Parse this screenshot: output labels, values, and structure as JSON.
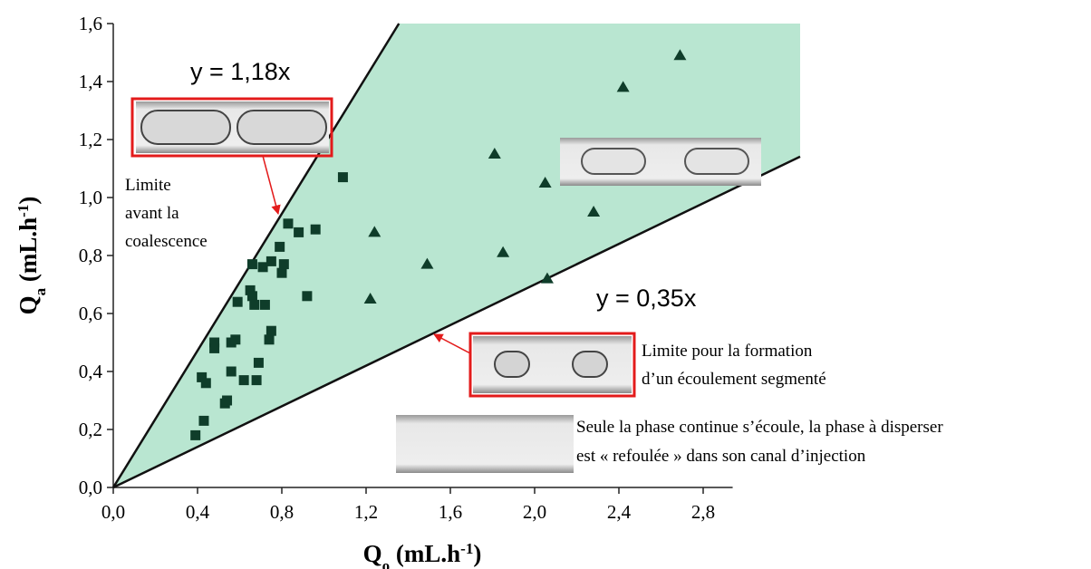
{
  "chart_data": {
    "type": "scatter",
    "xlabel": [
      "Q",
      "o",
      " (mL.h",
      "-1",
      ")"
    ],
    "ylabel": [
      "Q",
      "a",
      " (mL.h",
      "-1",
      ")"
    ],
    "xlim": [
      0,
      2.94
    ],
    "ylim": [
      0,
      1.6
    ],
    "xticks": [
      {
        "value": 0,
        "label": "0,0"
      },
      {
        "value": 0.4,
        "label": "0,4"
      },
      {
        "value": 0.8,
        "label": "0,8"
      },
      {
        "value": 1.2,
        "label": "1,2"
      },
      {
        "value": 1.6,
        "label": "1,6"
      },
      {
        "value": 2.0,
        "label": "2,0"
      },
      {
        "value": 2.4,
        "label": "2,4"
      },
      {
        "value": 2.8,
        "label": "2,8"
      }
    ],
    "yticks": [
      {
        "value": 0,
        "label": "0,0"
      },
      {
        "value": 0.2,
        "label": "0,2"
      },
      {
        "value": 0.4,
        "label": "0,4"
      },
      {
        "value": 0.6,
        "label": "0,6"
      },
      {
        "value": 0.8,
        "label": "0,8"
      },
      {
        "value": 1.0,
        "label": "1,0"
      },
      {
        "value": 1.2,
        "label": "1,2"
      },
      {
        "value": 1.4,
        "label": "1,4"
      },
      {
        "value": 1.6,
        "label": "1,6"
      }
    ],
    "region_color": "#b9e6d1",
    "lines": [
      {
        "label": "y = 1,18x",
        "slope": 1.18
      },
      {
        "label": "y = 0,35x",
        "slope": 0.35
      }
    ],
    "series": [
      {
        "marker": "square",
        "color": "#0f3d2a",
        "x": [
          0.39,
          0.43,
          0.42,
          0.44,
          0.48,
          0.48,
          0.53,
          0.54,
          0.56,
          0.56,
          0.58,
          0.59,
          0.62,
          0.65,
          0.66,
          0.66,
          0.67,
          0.68,
          0.69,
          0.71,
          0.72,
          0.74,
          0.75,
          0.75,
          0.79,
          0.8,
          0.81,
          0.83,
          0.88,
          0.92,
          0.96,
          1.09
        ],
        "values": [
          0.18,
          0.23,
          0.38,
          0.36,
          0.48,
          0.5,
          0.29,
          0.3,
          0.4,
          0.5,
          0.51,
          0.64,
          0.37,
          0.68,
          0.66,
          0.77,
          0.63,
          0.37,
          0.43,
          0.76,
          0.63,
          0.51,
          0.54,
          0.78,
          0.83,
          0.74,
          0.77,
          0.91,
          0.88,
          0.66,
          0.89,
          1.07
        ]
      },
      {
        "marker": "triangle",
        "color": "#0f3d2a",
        "x": [
          1.24,
          1.22,
          1.49,
          1.81,
          1.85,
          2.05,
          2.06,
          2.28,
          2.42,
          2.69
        ],
        "values": [
          0.88,
          0.65,
          0.77,
          1.15,
          0.81,
          1.05,
          0.72,
          0.95,
          1.38,
          1.49
        ]
      }
    ],
    "annotations": {
      "coalescence": [
        "Limite",
        "avant la",
        "coalescence"
      ],
      "segmented": [
        "Limite pour la formation",
        "d’un écoulement segmenté"
      ],
      "pushed_back": [
        "Seule la phase continue s’écoule, la phase à disperser",
        "est « refoulée » dans son canal d’injection"
      ]
    }
  }
}
